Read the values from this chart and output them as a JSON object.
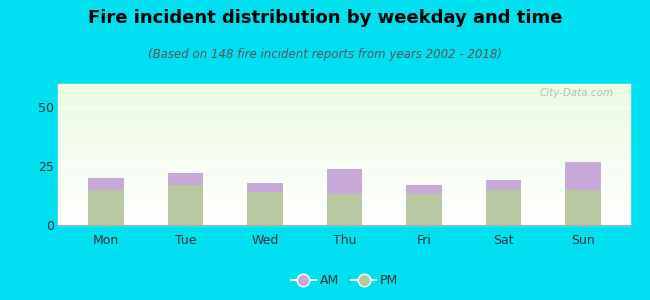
{
  "title": "Fire incident distribution by weekday and time",
  "subtitle": "(Based on 148 fire incident reports from years 2002 - 2018)",
  "days": [
    "Mon",
    "Tue",
    "Wed",
    "Thu",
    "Fri",
    "Sat",
    "Sun"
  ],
  "am_values": [
    5,
    5,
    4,
    11,
    4,
    4,
    12
  ],
  "pm_values": [
    15,
    17,
    14,
    13,
    13,
    15,
    15
  ],
  "am_color": "#c8a8d8",
  "pm_color": "#b8c8a0",
  "ylim": [
    0,
    60
  ],
  "yticks": [
    0,
    25,
    50
  ],
  "outer_bg": "#00e0f0",
  "title_fontsize": 13,
  "subtitle_fontsize": 8.5,
  "tick_fontsize": 9,
  "legend_fontsize": 9,
  "bar_width": 0.45,
  "watermark": "City-Data.com"
}
